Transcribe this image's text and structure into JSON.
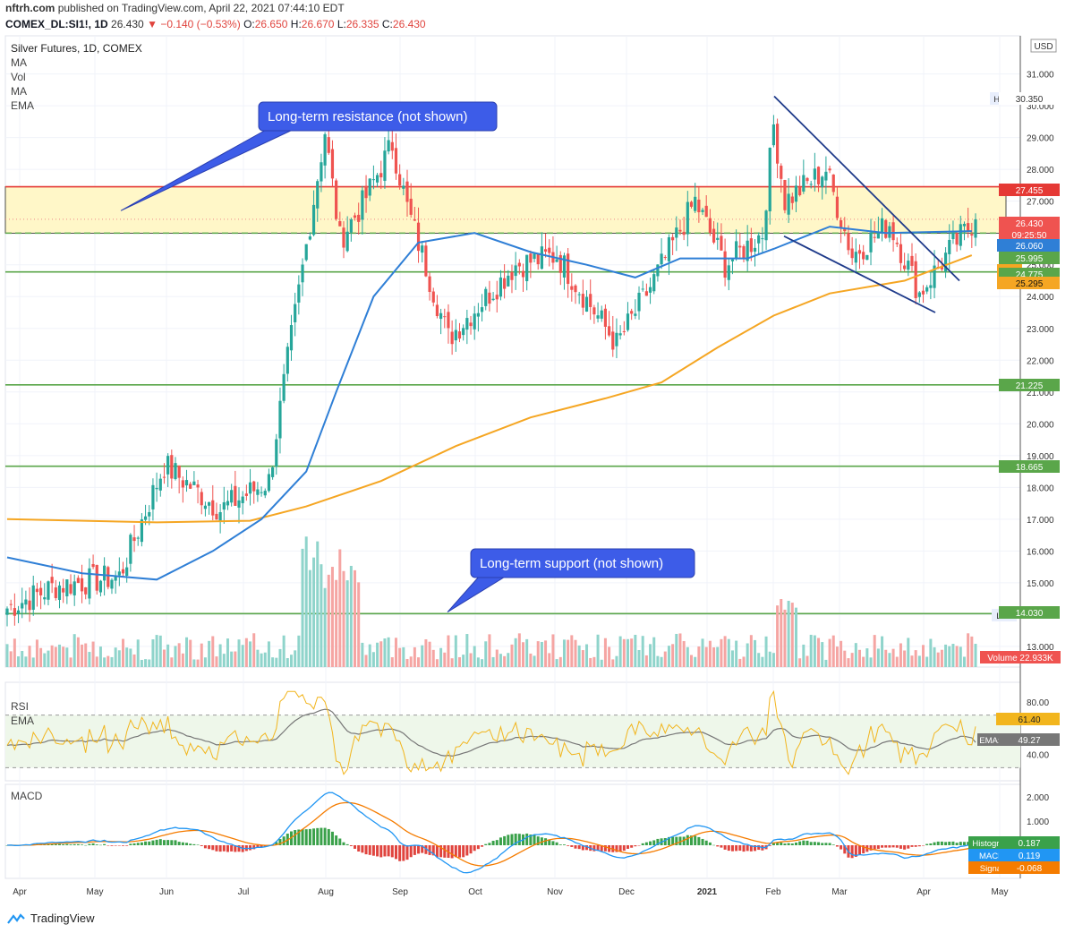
{
  "header": {
    "site": "nftrh.com",
    "published_text": "published on TradingView.com, April 22, 2021 07:44:10 EDT",
    "symbol_label": "COMEX_DL:SI1!, 1D",
    "last": "26.430",
    "change": "−0.140 (−0.53%)",
    "o_label": "O:",
    "o": "26.650",
    "h_label": "H:",
    "h": "26.670",
    "l_label": "L:",
    "l": "26.335",
    "c_label": "C:",
    "c": "26.430"
  },
  "legend": {
    "title": "Silver Futures, 1D, COMEX",
    "items": [
      "MA",
      "Vol",
      "MA",
      "EMA"
    ]
  },
  "annotations": {
    "resistance": "Long-term resistance (not shown)",
    "support": "Long-term support (not shown)"
  },
  "footer": {
    "brand": "TradingView"
  },
  "colors": {
    "up": "#26a69a",
    "down": "#ef5350",
    "ma50": "#2f7fd6",
    "ema200": "#f5a623",
    "green_line": "#5aa64a",
    "red_line": "#e53935",
    "zone": "#fff7c8",
    "trend": "#1e3a8a",
    "callout": "#3d5ce8"
  },
  "chart_data": [
    {
      "type": "candlestick",
      "title": "Silver Futures, 1D, COMEX",
      "currency": "USD",
      "x_months": [
        "Apr",
        "May",
        "Jun",
        "Jul",
        "Aug",
        "Sep",
        "Oct",
        "Nov",
        "Dec",
        "2021",
        "Feb",
        "Mar",
        "Apr",
        "May"
      ],
      "y_ticks": [
        "13.000",
        "14.000",
        "15.000",
        "16.000",
        "17.000",
        "18.000",
        "19.000",
        "20.000",
        "21.000",
        "22.000",
        "23.000",
        "24.000",
        "25.000",
        "26.000",
        "27.000",
        "28.000",
        "29.000",
        "30.000",
        "31.000"
      ],
      "ylim": [
        12.35,
        32.2
      ],
      "key_points": [
        {
          "date": "2020-04-01",
          "close": 14.2
        },
        {
          "date": "2020-04-21",
          "close": 14.9
        },
        {
          "date": "2020-05-15",
          "close": 15.2
        },
        {
          "date": "2020-06-03",
          "close": 18.7
        },
        {
          "date": "2020-06-25",
          "close": 17.3
        },
        {
          "date": "2020-07-14",
          "close": 18.2
        },
        {
          "date": "2020-07-22",
          "close": 22.0
        },
        {
          "date": "2020-08-06",
          "close": 29.2
        },
        {
          "date": "2020-08-11",
          "close": 25.8
        },
        {
          "date": "2020-08-20",
          "close": 26.9
        },
        {
          "date": "2020-09-01",
          "close": 28.8
        },
        {
          "date": "2020-09-08",
          "close": 26.8
        },
        {
          "date": "2020-09-24",
          "close": 22.7
        },
        {
          "date": "2020-10-20",
          "close": 25.0
        },
        {
          "date": "2020-11-06",
          "close": 25.3
        },
        {
          "date": "2020-11-30",
          "close": 22.5
        },
        {
          "date": "2020-12-14",
          "close": 24.3
        },
        {
          "date": "2020-12-31",
          "close": 27.0
        },
        {
          "date": "2021-01-12",
          "close": 25.0
        },
        {
          "date": "2021-01-27",
          "close": 26.0
        },
        {
          "date": "2021-02-01",
          "close": 29.4
        },
        {
          "date": "2021-02-05",
          "close": 27.0
        },
        {
          "date": "2021-02-22",
          "close": 28.0
        },
        {
          "date": "2021-03-04",
          "close": 25.3
        },
        {
          "date": "2021-03-18",
          "close": 26.3
        },
        {
          "date": "2021-03-31",
          "close": 24.1
        },
        {
          "date": "2021-04-13",
          "close": 25.6
        },
        {
          "date": "2021-04-22",
          "close": 26.43
        }
      ],
      "horizontal_lines": [
        {
          "value": 27.455,
          "color": "red"
        },
        {
          "value": 25.995,
          "color": "green",
          "style": "dashed"
        },
        {
          "value": 24.775,
          "color": "green"
        },
        {
          "value": 21.225,
          "color": "green"
        },
        {
          "value": 18.665,
          "color": "green"
        },
        {
          "value": 14.03,
          "color": "green"
        }
      ],
      "resistance_zone": [
        25.995,
        27.455
      ],
      "price_labels": [
        {
          "text": "High",
          "value": "30.350"
        },
        {
          "text": "",
          "value": "27.455"
        },
        {
          "text": "",
          "value": "26.430"
        },
        {
          "text": "",
          "value": "09:25:50"
        },
        {
          "text": "MA",
          "value": "26.060"
        },
        {
          "text": "",
          "value": "25.995"
        },
        {
          "text": "EMA",
          "value": "24.775"
        },
        {
          "text": "MA",
          "value": "25.295"
        },
        {
          "text": "",
          "value": "21.225"
        },
        {
          "text": "",
          "value": "18.665"
        },
        {
          "text": "Low",
          "value": "14.030"
        },
        {
          "text": "Volume",
          "value": "22.933K"
        }
      ],
      "ma50": [
        [
          0,
          15.8
        ],
        [
          20,
          15.3
        ],
        [
          40,
          15.1
        ],
        [
          55,
          16.0
        ],
        [
          68,
          17.0
        ],
        [
          80,
          18.5
        ],
        [
          88,
          21.0
        ],
        [
          98,
          24.0
        ],
        [
          110,
          25.7
        ],
        [
          125,
          26.0
        ],
        [
          140,
          25.4
        ],
        [
          155,
          25.0
        ],
        [
          168,
          24.6
        ],
        [
          180,
          25.2
        ],
        [
          198,
          25.2
        ],
        [
          205,
          25.5
        ],
        [
          220,
          26.2
        ],
        [
          235,
          26.0
        ],
        [
          258,
          26.06
        ]
      ],
      "ema200": [
        [
          0,
          17.0
        ],
        [
          40,
          16.9
        ],
        [
          65,
          16.95
        ],
        [
          80,
          17.4
        ],
        [
          100,
          18.2
        ],
        [
          120,
          19.3
        ],
        [
          140,
          20.2
        ],
        [
          160,
          20.8
        ],
        [
          175,
          21.3
        ],
        [
          190,
          22.4
        ],
        [
          205,
          23.4
        ],
        [
          220,
          24.1
        ],
        [
          240,
          24.5
        ],
        [
          258,
          25.3
        ]
      ]
    },
    {
      "type": "line",
      "title": "RSI",
      "series": [
        {
          "name": "RSI",
          "last": "61.40"
        },
        {
          "name": "EMA:MA",
          "last": "49.27"
        }
      ],
      "y_ticks": [
        "40.00",
        "80.00"
      ],
      "bands": [
        30,
        70
      ]
    },
    {
      "type": "line",
      "title": "MACD",
      "series": [
        {
          "name": "Histogram",
          "last": "0.187"
        },
        {
          "name": "MACD",
          "last": "0.119"
        },
        {
          "name": "Signal",
          "last": "-0.068"
        }
      ],
      "y_ticks": [
        "1.000",
        "2.000"
      ]
    }
  ]
}
